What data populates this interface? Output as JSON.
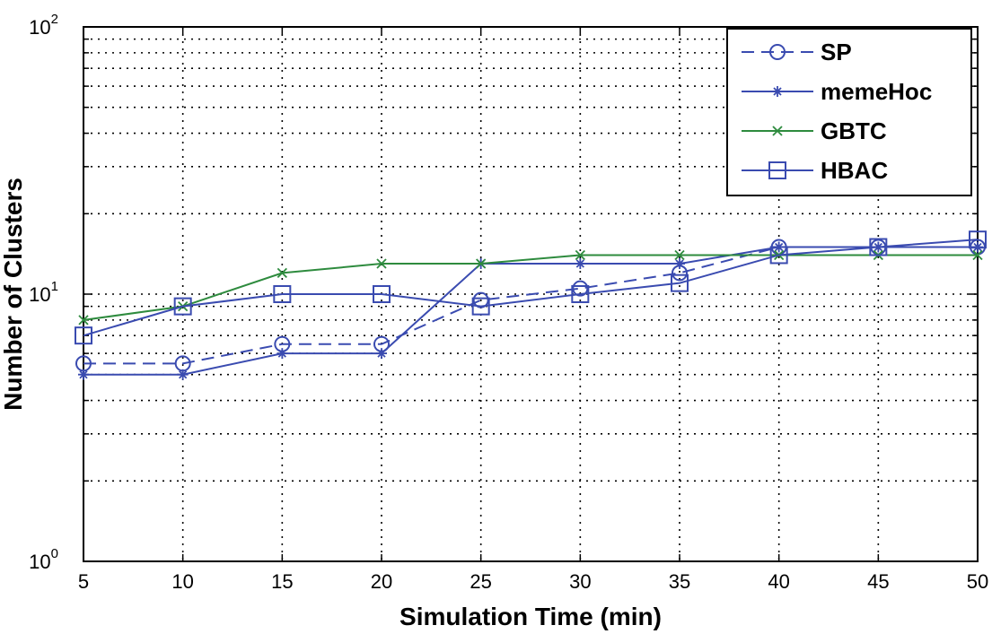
{
  "chart_data": {
    "type": "line",
    "xlabel": "Simulation Time (min)",
    "ylabel": "Number of Clusters",
    "y_scale": "log",
    "xlim": [
      5,
      50
    ],
    "ylim": [
      1,
      100
    ],
    "grid": true,
    "legend_position": "top-right",
    "x": [
      5,
      10,
      15,
      20,
      25,
      30,
      35,
      40,
      45,
      50
    ],
    "x_tick_labels": [
      "5",
      "10",
      "15",
      "20",
      "25",
      "30",
      "35",
      "40",
      "45",
      "50"
    ],
    "y_tick_labels": [
      {
        "base": "10",
        "exp": "0",
        "value": 1
      },
      {
        "base": "10",
        "exp": "1",
        "value": 10
      },
      {
        "base": "10",
        "exp": "2",
        "value": 100
      }
    ],
    "series": [
      {
        "name": "SP",
        "color": "#3a4bb0",
        "dash": "dashed",
        "marker": "circle",
        "values": [
          5.5,
          5.5,
          6.5,
          6.5,
          9.5,
          10.5,
          12,
          15,
          15,
          15
        ]
      },
      {
        "name": "memeHoc",
        "color": "#3a4bb0",
        "dash": "solid",
        "marker": "star",
        "values": [
          5,
          5,
          6,
          6,
          13,
          13,
          13,
          15,
          15,
          15
        ]
      },
      {
        "name": "GBTC",
        "color": "#2e8b3e",
        "dash": "solid",
        "marker": "x",
        "values": [
          8,
          9,
          12,
          13,
          13,
          14,
          14,
          14,
          14,
          14
        ]
      },
      {
        "name": "HBAC",
        "color": "#3a4bb0",
        "dash": "solid",
        "marker": "square",
        "values": [
          7,
          9,
          10,
          10,
          9,
          10,
          11,
          14,
          15,
          16
        ]
      }
    ]
  }
}
